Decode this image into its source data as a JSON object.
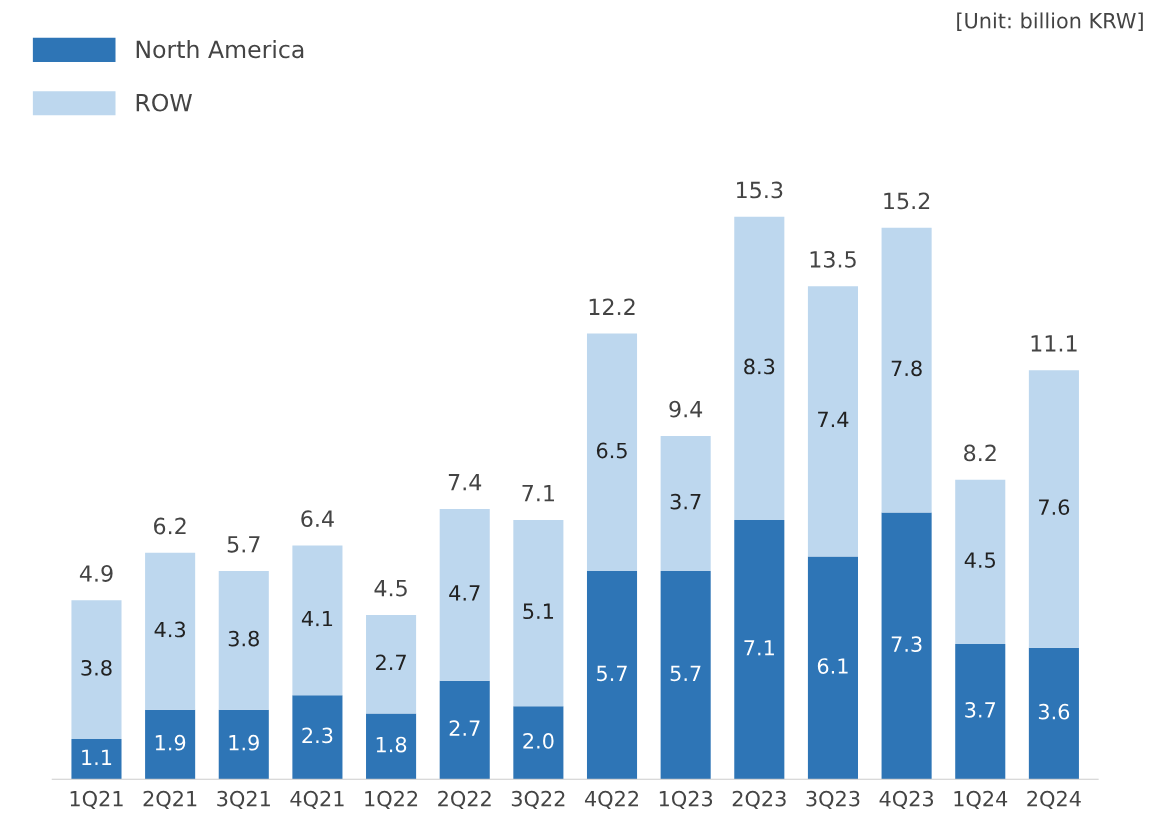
{
  "chart_data": {
    "type": "bar",
    "stacked": true,
    "categories": [
      "1Q21",
      "2Q21",
      "3Q21",
      "4Q21",
      "1Q22",
      "2Q22",
      "3Q22",
      "4Q22",
      "1Q23",
      "2Q23",
      "3Q23",
      "4Q23",
      "1Q24",
      "2Q24"
    ],
    "series": [
      {
        "name": "North America",
        "color": "#2e75b6",
        "values": [
          1.1,
          1.9,
          1.9,
          2.3,
          1.8,
          2.7,
          2.0,
          5.7,
          5.7,
          7.1,
          6.1,
          7.3,
          3.7,
          3.6
        ],
        "value_labels": [
          "1.1",
          "1.9",
          "1.9",
          "2.3",
          "1.8",
          "2.7",
          "2.0",
          "5.7",
          "5.7",
          "7.1",
          "6.1",
          "7.3",
          "3.7",
          "3.6"
        ]
      },
      {
        "name": "ROW",
        "color": "#bdd7ee",
        "values": [
          3.8,
          4.3,
          3.8,
          4.1,
          2.7,
          4.7,
          5.1,
          6.5,
          3.7,
          8.3,
          7.4,
          7.8,
          4.5,
          7.6
        ],
        "value_labels": [
          "3.8",
          "4.3",
          "3.8",
          "4.1",
          "2.7",
          "4.7",
          "5.1",
          "6.5",
          "3.7",
          "8.3",
          "7.4",
          "7.8",
          "4.5",
          "7.6"
        ]
      }
    ],
    "totals": [
      "4.9",
      "6.2",
      "5.7",
      "6.4",
      "4.5",
      "7.4",
      "7.1",
      "12.2",
      "9.4",
      "15.3",
      "13.5",
      "15.2",
      "8.2",
      "11.1"
    ],
    "annotations": [
      "[Unit: billion KRW]"
    ],
    "legend": "top left",
    "tick_labels": "x",
    "grid": false
  }
}
